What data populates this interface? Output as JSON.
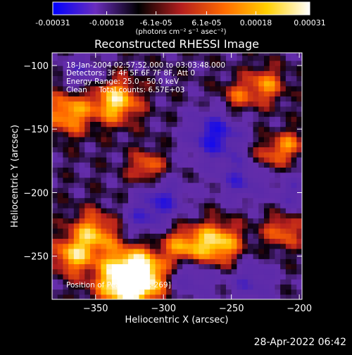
{
  "chart_data": {
    "type": "heatmap",
    "title": "Reconstructed RHESSI Image",
    "xlabel": "Heliocentric X (arcsec)",
    "ylabel": "Heliocentric Y (arcsec)",
    "xlim": [
      -382,
      -198
    ],
    "ylim": [
      -284,
      -90
    ],
    "x_ticks": [
      -350,
      -300,
      -250,
      -200
    ],
    "y_ticks": [
      -100,
      -150,
      -200,
      -250
    ],
    "colorbar": {
      "range": [
        -0.00031,
        0.00031
      ],
      "tick_values": [
        -0.00031,
        -0.00018,
        -6.1e-05,
        6.1e-05,
        0.00018,
        0.00031
      ],
      "tick_labels": [
        "-0.00031",
        "-0.00018",
        "-6.1e-05",
        "6.1e-05",
        "0.00018",
        "0.00031"
      ],
      "unit_label": "(photons cm⁻² s⁻¹ asec⁻²)",
      "colormap": [
        "#0000ff",
        "#6a2dbd",
        "#000000",
        "#b41e1e",
        "#ff6a00",
        "#ffd000",
        "#ffffff"
      ]
    },
    "annotations": [
      "18-Jan-2004 02:57:52.000 to 03:03:48.000",
      "Detectors: 3F 4F 5F 6F 7F 8F, Att 0",
      "Energy Range: 25.0 - 50.0 keV",
      "Clean     Total counts: 6.57E+03"
    ],
    "peak_label": "Position of Peak: [-328,-269]",
    "peak_x": -328,
    "peak_y": -269,
    "hot_spots": [
      {
        "x": -328,
        "y": -269,
        "intensity": 1.0,
        "radius": 16
      },
      {
        "x": -335,
        "y": -128,
        "intensity": 0.9,
        "radius": 12
      },
      {
        "x": -318,
        "y": -265,
        "intensity": 0.85,
        "radius": 13
      },
      {
        "x": -370,
        "y": -137,
        "intensity": 0.75,
        "radius": 12
      },
      {
        "x": -260,
        "y": -240,
        "intensity": 0.9,
        "radius": 12
      },
      {
        "x": -285,
        "y": -243,
        "intensity": 0.7,
        "radius": 11
      },
      {
        "x": -352,
        "y": -232,
        "intensity": 0.75,
        "radius": 12
      },
      {
        "x": -368,
        "y": -250,
        "intensity": 0.7,
        "radius": 10
      },
      {
        "x": -312,
        "y": -180,
        "intensity": 0.6,
        "radius": 9
      },
      {
        "x": -225,
        "y": -115,
        "intensity": 0.6,
        "radius": 10
      },
      {
        "x": -212,
        "y": -230,
        "intensity": 0.55,
        "radius": 10
      },
      {
        "x": -222,
        "y": -170,
        "intensity": 0.45,
        "radius": 9
      },
      {
        "x": -246,
        "y": -125,
        "intensity": 0.45,
        "radius": 9
      },
      {
        "x": -207,
        "y": -162,
        "intensity": 0.5,
        "radius": 8
      }
    ],
    "cold_spots": [
      {
        "x": -262,
        "y": -155,
        "intensity": -0.8,
        "radius": 14
      },
      {
        "x": -300,
        "y": -205,
        "intensity": -0.6,
        "radius": 12
      },
      {
        "x": -243,
        "y": -190,
        "intensity": -0.55,
        "radius": 12
      },
      {
        "x": -280,
        "y": -265,
        "intensity": -0.5,
        "radius": 12
      },
      {
        "x": -360,
        "y": -105,
        "intensity": -0.45,
        "radius": 10
      },
      {
        "x": -235,
        "y": -270,
        "intensity": -0.5,
        "radius": 12
      },
      {
        "x": -205,
        "y": -200,
        "intensity": -0.45,
        "radius": 10
      },
      {
        "x": -316,
        "y": -220,
        "intensity": -0.45,
        "radius": 10
      }
    ]
  },
  "footer": {
    "date": "28-Apr-2022 06:42"
  }
}
